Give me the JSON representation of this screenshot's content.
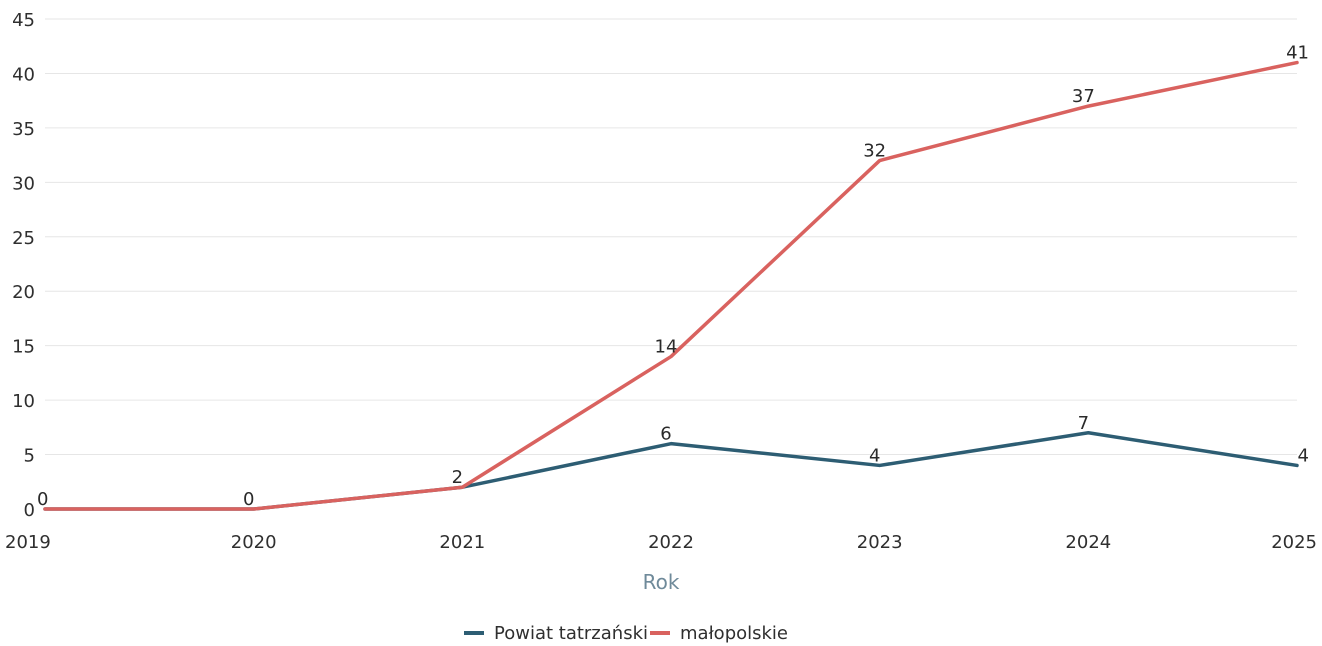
{
  "chart_data": {
    "type": "line",
    "x": [
      "2019",
      "2020",
      "2021",
      "2022",
      "2023",
      "2024",
      "2025"
    ],
    "series": [
      {
        "name": "Powiat tatrzański",
        "values": [
          0,
          0,
          2,
          6,
          4,
          7,
          4
        ],
        "color": "#2d5d73"
      },
      {
        "name": "małopolskie",
        "values": [
          0,
          0,
          2,
          14,
          32,
          37,
          41
        ],
        "color": "#d9625f"
      }
    ],
    "xlabel": "Rok",
    "ylabel": "",
    "ylim": [
      0,
      45
    ],
    "yticks": [
      0,
      5,
      10,
      15,
      20,
      25,
      30,
      35,
      40,
      45
    ],
    "grid": true,
    "legend_position": "bottom-center",
    "data_labels": {
      "Powiat tatrzański": [
        "",
        "",
        "",
        "6",
        "4",
        "7",
        "4"
      ],
      "małopolskie": [
        "0",
        "0",
        "2",
        "14",
        "32",
        "37",
        "41"
      ]
    }
  }
}
